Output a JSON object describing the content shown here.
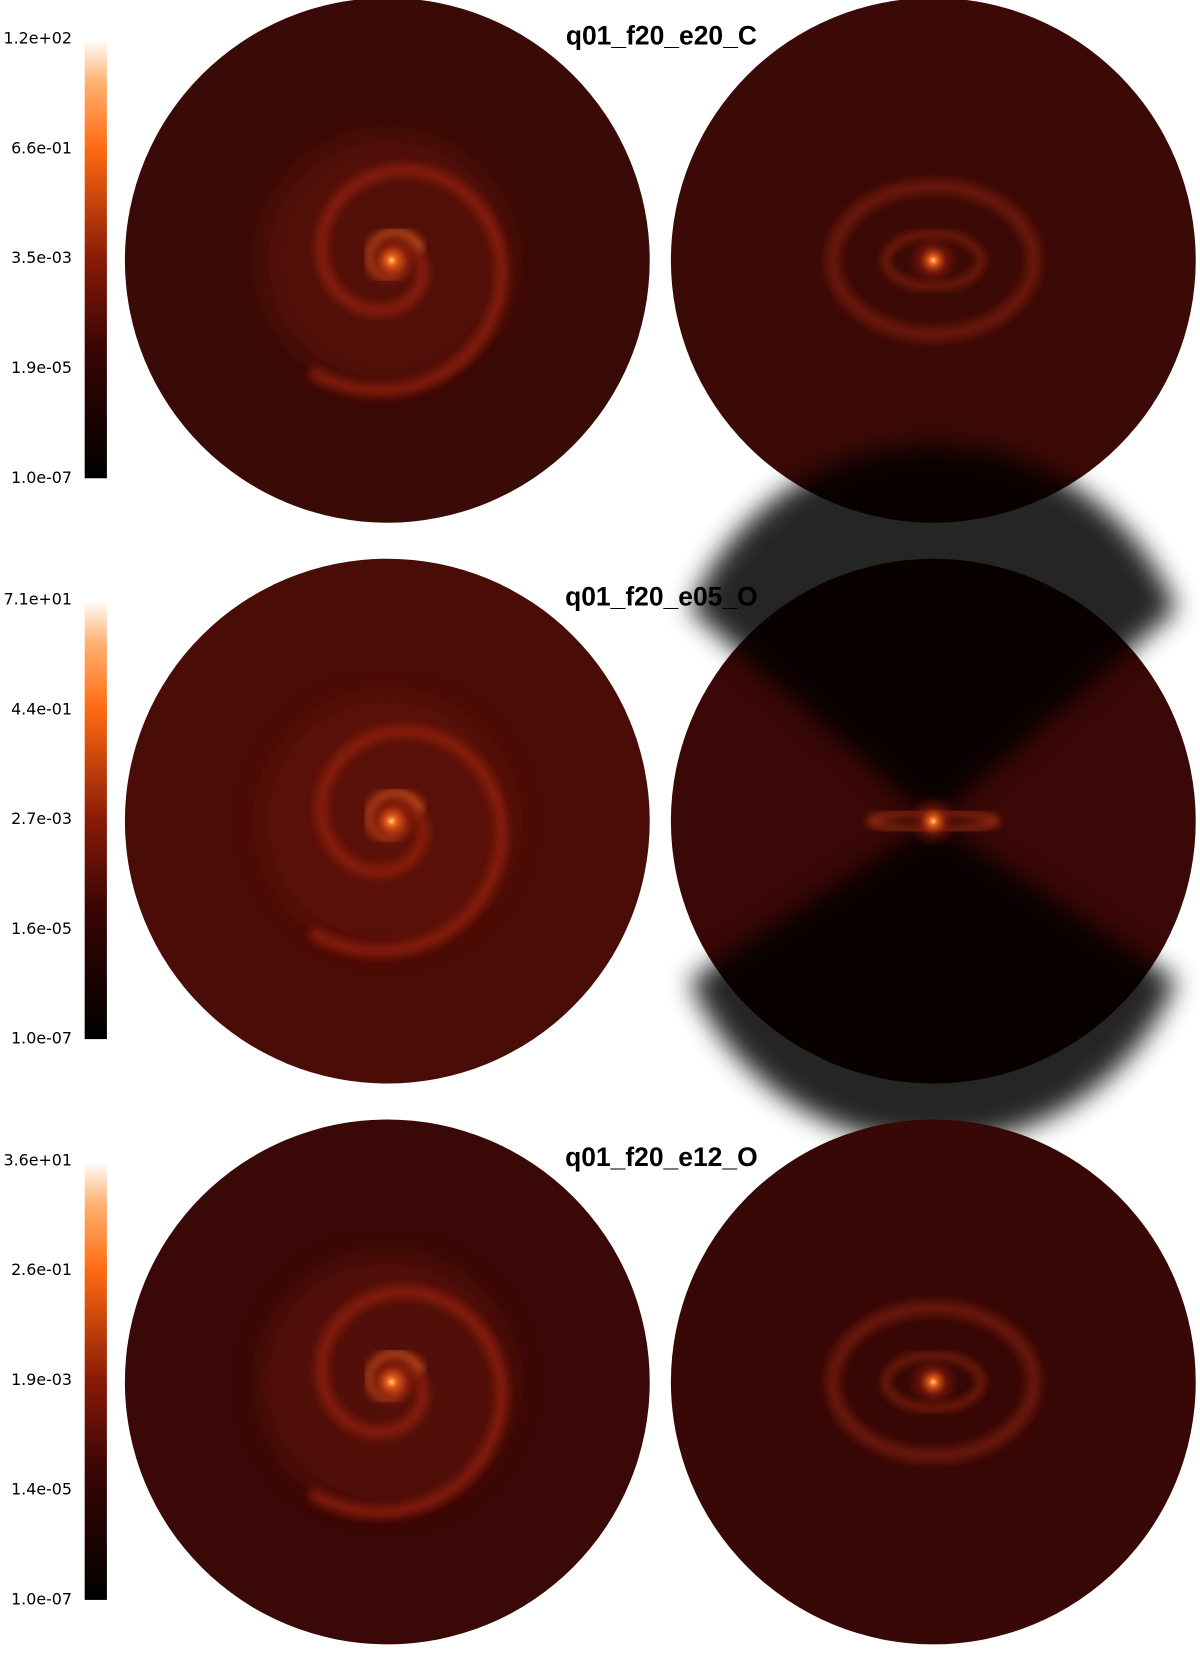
{
  "panels": [
    {
      "title": "q01_f20_e20_C",
      "colorbar": {
        "ticks": [
          "1.2e+02",
          "6.6e-01",
          "3.5e-03",
          "1.9e-05",
          "1.0e-07"
        ]
      }
    },
    {
      "title": "q01_f20_e05_O",
      "colorbar": {
        "ticks": [
          "7.1e+01",
          "4.4e-01",
          "2.7e-03",
          "1.6e-05",
          "1.0e-07"
        ]
      }
    },
    {
      "title": "q01_f20_e12_O",
      "colorbar": {
        "ticks": [
          "3.6e+01",
          "2.6e-01",
          "1.9e-03",
          "1.4e-05",
          "1.0e-07"
        ]
      }
    }
  ]
}
